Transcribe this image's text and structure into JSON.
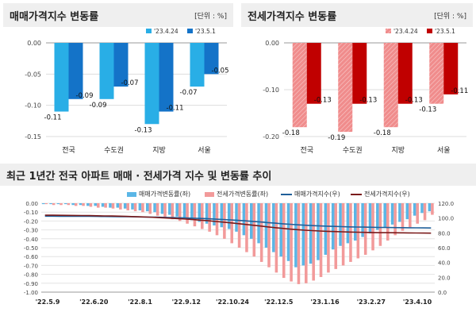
{
  "panels": {
    "sale": {
      "title": "매매가격지수 변동률",
      "unit": "[단위 : %]"
    },
    "jeonse": {
      "title": "전세가격지수 변동률",
      "unit": "[단위 : %]"
    },
    "trend": {
      "title": "최근 1년간 전국 아파트 매매 · 전세가격 지수 및 변동률 추이"
    }
  },
  "colors": {
    "sale_prev": "#29aee6",
    "sale_curr": "#1473c8",
    "jeonse_prev": "#f08c8c",
    "jeonse_curr": "#c00000",
    "trend_sale_bar": "#5bb6e6",
    "trend_jeonse_bar": "#f29a9a",
    "trend_sale_line": "#1f5f99",
    "trend_jeonse_line": "#7a1a1a"
  },
  "chart_data": [
    {
      "id": "sale",
      "type": "bar",
      "categories": [
        "전국",
        "수도권",
        "지방",
        "서울"
      ],
      "series": [
        {
          "name": "'23.4.24",
          "values": [
            -0.11,
            -0.09,
            -0.13,
            -0.07
          ]
        },
        {
          "name": "'23.5.1",
          "values": [
            -0.09,
            -0.07,
            -0.11,
            -0.05
          ]
        }
      ],
      "ylim": [
        -0.15,
        0.0
      ],
      "yticks": [
        "0.00",
        "-0.05",
        "-0.10",
        "-0.15"
      ],
      "data_labels": [
        [
          "-0.11",
          "-0.09",
          "-0.13",
          "-0.07"
        ],
        [
          "-0.09",
          "-0.07",
          "-0.11",
          "-0.05"
        ]
      ]
    },
    {
      "id": "jeonse",
      "type": "bar",
      "categories": [
        "전국",
        "수도권",
        "지방",
        "서울"
      ],
      "series": [
        {
          "name": "'23.4.24",
          "values": [
            -0.18,
            -0.19,
            -0.18,
            -0.13
          ]
        },
        {
          "name": "'23.5.1",
          "values": [
            -0.13,
            -0.13,
            -0.13,
            -0.11
          ]
        }
      ],
      "ylim": [
        -0.2,
        0.0
      ],
      "yticks": [
        "0.00",
        "-0.10",
        "-0.20"
      ],
      "data_labels": [
        [
          "-0.18",
          "-0.19",
          "-0.18",
          "-0.13"
        ],
        [
          "-0.13",
          "-0.13",
          "-0.13",
          "-0.11"
        ]
      ]
    },
    {
      "id": "trend",
      "type": "bar",
      "legend": [
        "매매가격변동률(좌)",
        "전세가격변동률(좌)",
        "매매가격지수(우)",
        "전세가격지수(우)"
      ],
      "x_tick_labels": [
        "'22.5.9",
        "'22.6.20",
        "'22.8.1",
        "'22.9.12",
        "'22.10.24",
        "'22.12.5",
        "'23.1.16",
        "'23.2.27",
        "'23.4.10"
      ],
      "left_yticks": [
        "0.00",
        "-0.10",
        "-0.20",
        "-0.30",
        "-0.40",
        "-0.50",
        "-0.60",
        "-0.70",
        "-0.80",
        "-0.90",
        "-1.00"
      ],
      "right_yticks": [
        "120.0",
        "100.0",
        "80.0",
        "60.0",
        "40.0",
        "20.0",
        "0.0"
      ],
      "left_ylim": [
        -1.0,
        0.0
      ],
      "right_ylim": [
        0,
        120
      ],
      "sale_change": [
        -0.01,
        -0.01,
        -0.01,
        -0.01,
        -0.02,
        -0.02,
        -0.03,
        -0.03,
        -0.04,
        -0.05,
        -0.05,
        -0.06,
        -0.07,
        -0.08,
        -0.09,
        -0.1,
        -0.12,
        -0.13,
        -0.15,
        -0.17,
        -0.19,
        -0.21,
        -0.23,
        -0.25,
        -0.27,
        -0.29,
        -0.32,
        -0.36,
        -0.4,
        -0.45,
        -0.5,
        -0.55,
        -0.6,
        -0.65,
        -0.72,
        -0.7,
        -0.68,
        -0.64,
        -0.58,
        -0.52,
        -0.48,
        -0.45,
        -0.42,
        -0.38,
        -0.34,
        -0.3,
        -0.27,
        -0.24,
        -0.21,
        -0.18,
        -0.14,
        -0.11,
        -0.09
      ],
      "jeonse_change": [
        -0.01,
        -0.02,
        -0.02,
        -0.02,
        -0.03,
        -0.03,
        -0.04,
        -0.05,
        -0.05,
        -0.06,
        -0.07,
        -0.08,
        -0.09,
        -0.1,
        -0.12,
        -0.14,
        -0.16,
        -0.18,
        -0.2,
        -0.23,
        -0.26,
        -0.29,
        -0.32,
        -0.36,
        -0.4,
        -0.45,
        -0.5,
        -0.55,
        -0.6,
        -0.66,
        -0.72,
        -0.78,
        -0.84,
        -0.88,
        -0.91,
        -0.9,
        -0.87,
        -0.83,
        -0.78,
        -0.74,
        -0.7,
        -0.66,
        -0.62,
        -0.58,
        -0.53,
        -0.48,
        -0.42,
        -0.36,
        -0.31,
        -0.27,
        -0.23,
        -0.19,
        -0.13
      ],
      "sale_index": [
        102.5,
        102.5,
        102.4,
        102.4,
        102.4,
        102.3,
        102.3,
        102.2,
        102.1,
        102.0,
        101.9,
        101.8,
        101.7,
        101.5,
        101.3,
        101.1,
        100.9,
        100.7,
        100.4,
        100.1,
        99.8,
        99.4,
        99.0,
        98.5,
        98.0,
        97.5,
        96.9,
        96.2,
        95.5,
        94.7,
        93.9,
        93.1,
        92.3,
        91.6,
        90.9,
        90.3,
        89.8,
        89.4,
        89.0,
        88.7,
        88.4,
        88.1,
        87.9,
        87.7,
        87.5,
        87.3,
        87.2,
        87.1,
        87.0,
        86.9,
        86.8,
        86.7,
        86.6
      ],
      "jeonse_index": [
        103.8,
        103.8,
        103.7,
        103.6,
        103.5,
        103.4,
        103.3,
        103.1,
        102.9,
        102.7,
        102.5,
        102.2,
        101.9,
        101.6,
        101.2,
        100.8,
        100.3,
        99.8,
        99.2,
        98.6,
        97.9,
        97.1,
        96.3,
        95.4,
        94.5,
        93.5,
        92.5,
        91.4,
        90.3,
        89.2,
        88.1,
        87.0,
        86.0,
        85.1,
        84.3,
        83.6,
        83.0,
        82.5,
        82.1,
        81.7,
        81.4,
        81.1,
        80.9,
        80.7,
        80.5,
        80.3,
        80.2,
        80.1,
        80.0,
        79.9,
        79.8,
        79.7,
        79.6
      ]
    }
  ]
}
